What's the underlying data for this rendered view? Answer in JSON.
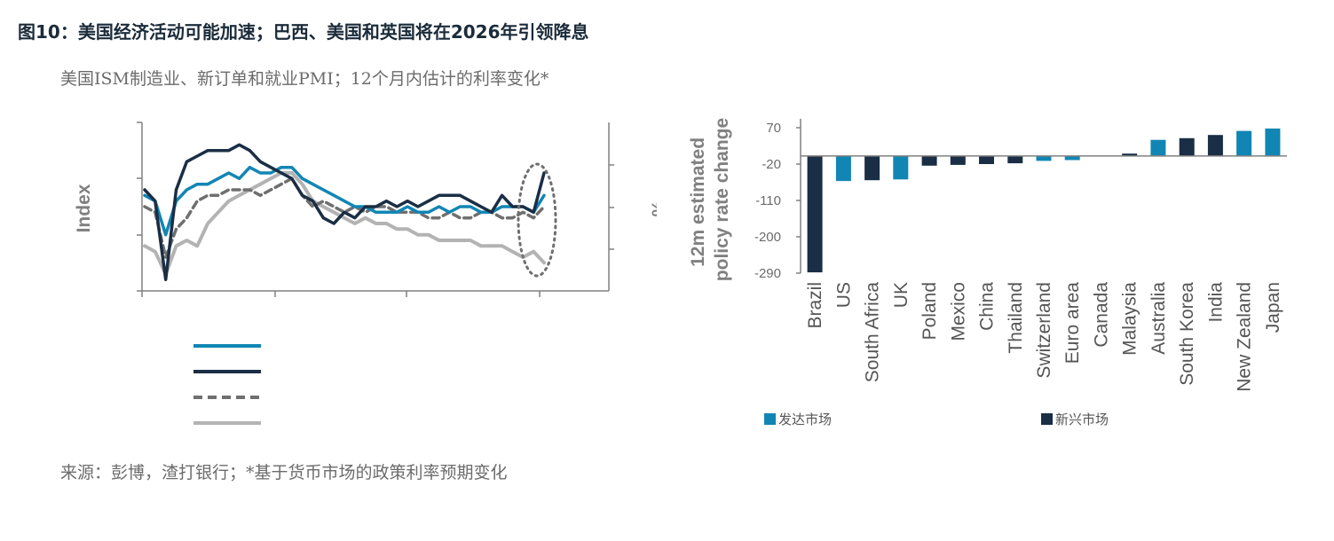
{
  "header": {
    "title": "图10：美国经济活动可能加速；巴西、美国和英国将在2026年引领降息",
    "subtitle": "美国ISM制造业、新订单和就业PMI；12个月内估计的利率变化*",
    "source": "来源：彭博，渣打银行；*基于货币市场的政策利率预期变化"
  },
  "colors": {
    "developed": "#1186b4",
    "emerging": "#1a2e45",
    "dashed": "#6f6f6f",
    "light": "#b3b3b3",
    "axis": "#808080"
  },
  "chart_data": [
    {
      "type": "line",
      "ylabel": "Index",
      "y2label": "%",
      "grid": false,
      "annotation": "dotted-ellipse around latest readings",
      "series": [
        {
          "style": "solid",
          "color": "#1186b4",
          "values": [
            57,
            56,
            50,
            56,
            58,
            59,
            59,
            60,
            61,
            60,
            62,
            61,
            61,
            62,
            62,
            60,
            59,
            58,
            57,
            56,
            55,
            55,
            54,
            54,
            54,
            55,
            54,
            54,
            55,
            54,
            55,
            55,
            54,
            54,
            55,
            55,
            55,
            54,
            57
          ]
        },
        {
          "style": "solid",
          "color": "#1a2e45",
          "values": [
            58,
            56,
            42,
            58,
            63,
            64,
            65,
            65,
            65,
            66,
            65,
            63,
            62,
            61,
            60,
            57,
            56,
            53,
            52,
            54,
            53,
            55,
            55,
            56,
            55,
            56,
            55,
            56,
            57,
            57,
            57,
            56,
            55,
            54,
            57,
            55,
            55,
            54,
            61
          ]
        },
        {
          "style": "dashed",
          "color": "#6f6f6f",
          "values": [
            55,
            54,
            46,
            51,
            53,
            56,
            57,
            57,
            58,
            58,
            58,
            57,
            58,
            59,
            60,
            57,
            55,
            56,
            55,
            54,
            55,
            54,
            55,
            55,
            54,
            54,
            54,
            53,
            53,
            54,
            53,
            53,
            54,
            54,
            53,
            53,
            54,
            53,
            55
          ]
        },
        {
          "style": "solid",
          "color": "#b3b3b3",
          "values": [
            48,
            47,
            43,
            48,
            49,
            48,
            52,
            54,
            56,
            57,
            58,
            59,
            60,
            61,
            61,
            59,
            56,
            55,
            54,
            53,
            52,
            53,
            52,
            52,
            51,
            51,
            50,
            50,
            49,
            49,
            49,
            49,
            48,
            48,
            48,
            47,
            46,
            47,
            45
          ]
        }
      ]
    },
    {
      "type": "bar",
      "ylabel": "12m estimated policy rate change",
      "ylim": [
        -290,
        70
      ],
      "yticks": [
        "70",
        "-20",
        "-110",
        "-200",
        "-290"
      ],
      "categories": [
        "Brazil",
        "US",
        "South Africa",
        "UK",
        "Poland",
        "Mexico",
        "China",
        "Thailand",
        "Switzerland",
        "Euro area",
        "Canada",
        "Malaysia",
        "Australia",
        "South Korea",
        "India",
        "New Zealand",
        "Japan"
      ],
      "values": [
        -288,
        -62,
        -60,
        -58,
        -24,
        -22,
        -20,
        -18,
        -12,
        -10,
        0,
        6,
        40,
        44,
        52,
        62,
        68
      ],
      "groups": [
        "emerging",
        "developed",
        "emerging",
        "developed",
        "emerging",
        "emerging",
        "emerging",
        "emerging",
        "developed",
        "developed",
        "developed",
        "emerging",
        "developed",
        "emerging",
        "emerging",
        "developed",
        "developed"
      ],
      "legend": [
        {
          "key": "developed",
          "label": "发达市场"
        },
        {
          "key": "emerging",
          "label": "新兴市场"
        }
      ]
    }
  ]
}
